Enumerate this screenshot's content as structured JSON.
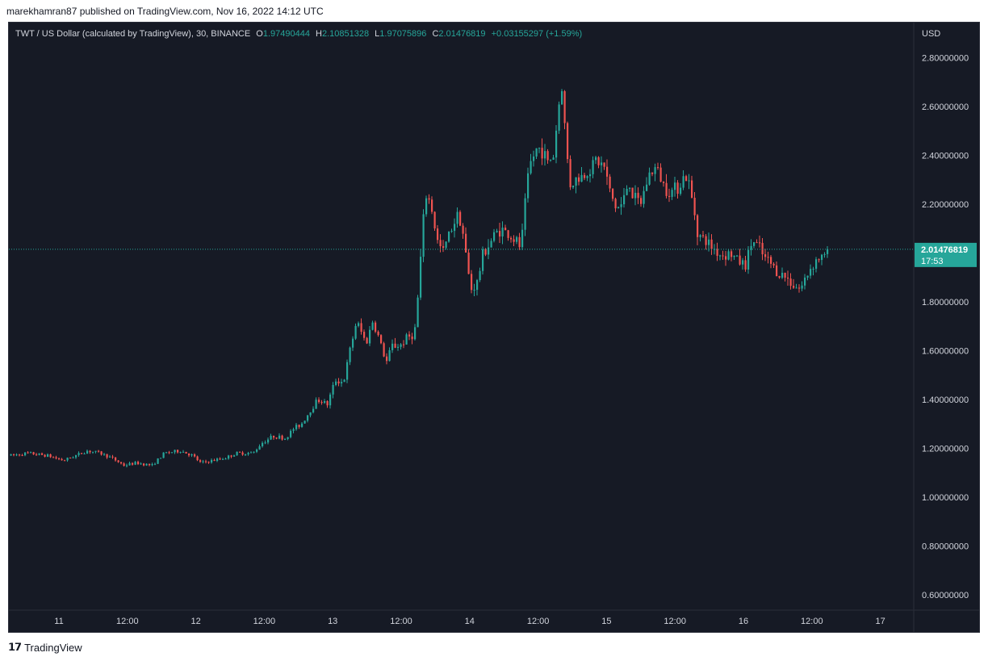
{
  "publisher_line": "marekhamran87 published on TradingView.com, Nov 16, 2022 14:12 UTC",
  "legend": {
    "symbol": "TWT / US Dollar (calculated by TradingView), 30, BINANCE",
    "o_label": "O",
    "o_value": "1.97490444",
    "h_label": "H",
    "h_value": "2.10851328",
    "l_label": "L",
    "l_value": "1.97075896",
    "c_label": "C",
    "c_value": "2.01476819",
    "change": "+0.03155297 (+1.59%)"
  },
  "logo": {
    "icon": "tradingview-logo-icon",
    "text": "TradingView"
  },
  "colors": {
    "background": "#161a25",
    "up": "#26a69a",
    "down": "#ef5350",
    "text": "#d1d4dc",
    "price_line": "#26a69a"
  },
  "chart_data": {
    "type": "candlestick",
    "title": "TWT / US Dollar (calculated by TradingView), 30, BINANCE",
    "currency_label": "USD",
    "interval": "30",
    "y_ticks": [
      "2.80000000",
      "2.60000000",
      "2.40000000",
      "2.20000000",
      "1.80000000",
      "1.60000000",
      "1.40000000",
      "1.20000000",
      "1.00000000",
      "0.80000000",
      "0.60000000"
    ],
    "ylim": [
      0.55,
      2.93
    ],
    "x_ticks": [
      "11",
      "12:00",
      "12",
      "12:00",
      "13",
      "12:00",
      "14",
      "12:00",
      "15",
      "12:00",
      "16",
      "12:00",
      "17"
    ],
    "last_price": "2.01476819",
    "countdown": "17:53",
    "close_path": [
      [
        0,
        1.17
      ],
      [
        20,
        1.18
      ],
      [
        45,
        1.17
      ],
      [
        65,
        1.15
      ],
      [
        80,
        1.17
      ],
      [
        95,
        1.19
      ],
      [
        110,
        1.18
      ],
      [
        125,
        1.16
      ],
      [
        140,
        1.13
      ],
      [
        155,
        1.14
      ],
      [
        175,
        1.13
      ],
      [
        190,
        1.18
      ],
      [
        210,
        1.19
      ],
      [
        225,
        1.17
      ],
      [
        235,
        1.14
      ],
      [
        250,
        1.15
      ],
      [
        265,
        1.16
      ],
      [
        280,
        1.18
      ],
      [
        300,
        1.18
      ],
      [
        310,
        1.22
      ],
      [
        325,
        1.25
      ],
      [
        340,
        1.24
      ],
      [
        350,
        1.28
      ],
      [
        360,
        1.3
      ],
      [
        370,
        1.35
      ],
      [
        380,
        1.4
      ],
      [
        392,
        1.38
      ],
      [
        402,
        1.48
      ],
      [
        412,
        1.47
      ],
      [
        420,
        1.6
      ],
      [
        428,
        1.72
      ],
      [
        440,
        1.63
      ],
      [
        448,
        1.72
      ],
      [
        455,
        1.66
      ],
      [
        465,
        1.55
      ],
      [
        472,
        1.62
      ],
      [
        482,
        1.62
      ],
      [
        490,
        1.65
      ],
      [
        500,
        1.67
      ],
      [
        505,
        1.85
      ],
      [
        510,
        2.1
      ],
      [
        515,
        2.25
      ],
      [
        522,
        2.17
      ],
      [
        528,
        2.05
      ],
      [
        535,
        2.0
      ],
      [
        545,
        2.1
      ],
      [
        555,
        2.17
      ],
      [
        560,
        2.08
      ],
      [
        565,
        1.95
      ],
      [
        570,
        1.85
      ],
      [
        578,
        1.88
      ],
      [
        585,
        2.0
      ],
      [
        595,
        2.05
      ],
      [
        605,
        2.1
      ],
      [
        615,
        2.08
      ],
      [
        625,
        2.05
      ],
      [
        632,
        2.02
      ],
      [
        637,
        2.2
      ],
      [
        642,
        2.35
      ],
      [
        650,
        2.42
      ],
      [
        657,
        2.43
      ],
      [
        665,
        2.37
      ],
      [
        672,
        2.4
      ],
      [
        677,
        2.55
      ],
      [
        682,
        2.7
      ],
      [
        687,
        2.48
      ],
      [
        692,
        2.28
      ],
      [
        700,
        2.3
      ],
      [
        710,
        2.32
      ],
      [
        718,
        2.35
      ],
      [
        725,
        2.38
      ],
      [
        735,
        2.35
      ],
      [
        742,
        2.25
      ],
      [
        750,
        2.18
      ],
      [
        758,
        2.2
      ],
      [
        765,
        2.3
      ],
      [
        772,
        2.22
      ],
      [
        780,
        2.2
      ],
      [
        790,
        2.32
      ],
      [
        800,
        2.35
      ],
      [
        808,
        2.28
      ],
      [
        818,
        2.25
      ],
      [
        828,
        2.28
      ],
      [
        835,
        2.32
      ],
      [
        840,
        2.28
      ],
      [
        846,
        2.18
      ],
      [
        852,
        2.07
      ],
      [
        860,
        2.05
      ],
      [
        870,
        2.02
      ],
      [
        880,
        1.99
      ],
      [
        890,
        2.0
      ],
      [
        900,
        1.97
      ],
      [
        910,
        1.95
      ],
      [
        918,
        2.05
      ],
      [
        925,
        2.03
      ],
      [
        933,
        1.98
      ],
      [
        940,
        1.96
      ],
      [
        950,
        1.92
      ],
      [
        960,
        1.9
      ],
      [
        970,
        1.87
      ],
      [
        978,
        1.85
      ],
      [
        985,
        1.9
      ],
      [
        992,
        1.95
      ],
      [
        1000,
        1.98
      ],
      [
        1008,
        1.98
      ],
      [
        1013,
        2.015
      ]
    ]
  }
}
